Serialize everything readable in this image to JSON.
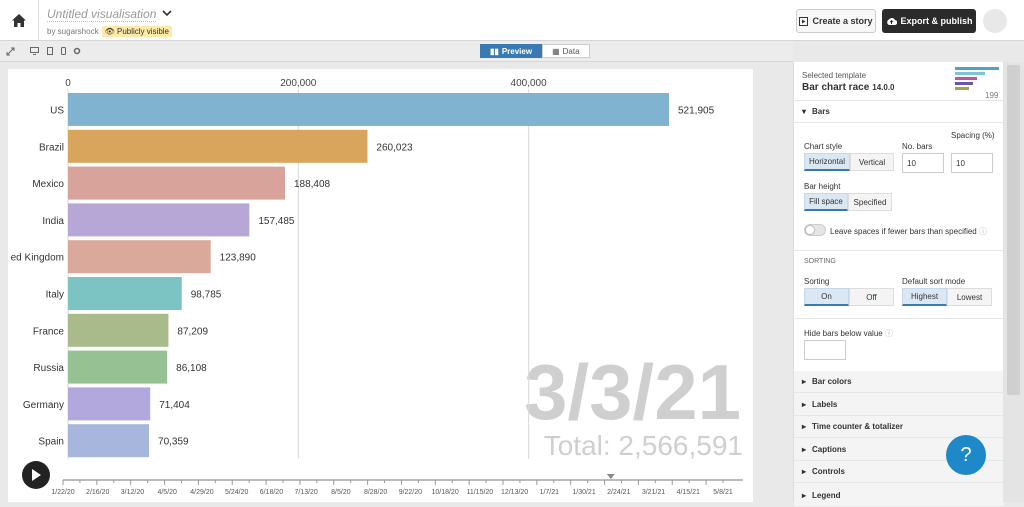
{
  "header": {
    "title": "Untitled visualisation",
    "author": "by sugarshock",
    "visibility": "Publicly visible",
    "create_story": "Create a story",
    "export": "Export & publish"
  },
  "view_toggle": {
    "preview": "Preview",
    "data": "Data"
  },
  "chart_data": {
    "type": "bar",
    "orientation": "horizontal",
    "categories": [
      "US",
      "Brazil",
      "Mexico",
      "India",
      "United Kingdom",
      "Italy",
      "France",
      "Russia",
      "Germany",
      "Spain"
    ],
    "values": [
      521905,
      260023,
      188408,
      157485,
      123890,
      98785,
      87209,
      86108,
      71404,
      70359
    ],
    "value_labels": [
      "521,905",
      "260,023",
      "188,408",
      "157,485",
      "123,890",
      "98,785",
      "87,209",
      "86,108",
      "71,404",
      "70,359"
    ],
    "category_labels": [
      "US",
      "Brazil",
      "Mexico",
      "India",
      "ed Kingdom",
      "Italy",
      "France",
      "Russia",
      "Germany",
      "Spain"
    ],
    "colors": [
      "#7fb3d0",
      "#d9a55c",
      "#d8a39b",
      "#b6a7d6",
      "#dba89c",
      "#7cc4c4",
      "#a9bb8a",
      "#96c293",
      "#b2a8de",
      "#a6b6dc"
    ],
    "xlim": [
      0,
      600000
    ],
    "x_ticks": [
      0,
      200000,
      400000
    ],
    "x_tick_labels": [
      "0",
      "200,000",
      "400,000"
    ],
    "date": "3/3/21",
    "total": "Total: 2,566,591",
    "timeline_labels": [
      "1/22/20",
      "2/16/20",
      "3/12/20",
      "4/5/20",
      "4/29/20",
      "5/24/20",
      "6/18/20",
      "7/13/20",
      "8/5/20",
      "8/28/20",
      "9/22/20",
      "10/18/20",
      "11/15/20",
      "12/13/20",
      "1/7/21",
      "1/30/21",
      "2/24/21",
      "3/21/21",
      "4/15/21",
      "5/8/21"
    ],
    "timeline_progress": 0.83
  },
  "panel": {
    "selected_label": "Selected template",
    "template_name": "Bar chart race",
    "template_version": "14.0.0",
    "thumb_label": "199",
    "bars_section": "Bars",
    "chart_style_label": "Chart style",
    "chart_style_options": [
      "Horizontal",
      "Vertical"
    ],
    "no_bars_label": "No. bars",
    "no_bars_value": "10",
    "spacing_label": "Spacing (%)",
    "spacing_value": "10",
    "bar_height_label": "Bar height",
    "bar_height_options": [
      "Fill space",
      "Specified"
    ],
    "leave_spaces_label": "Leave spaces if fewer bars than specified",
    "sorting_section": "SORTING",
    "sorting_label": "Sorting",
    "sorting_options": [
      "On",
      "Off"
    ],
    "sort_mode_label": "Default sort mode",
    "sort_mode_options": [
      "Highest",
      "Lowest"
    ],
    "hide_bars_label": "Hide bars below value",
    "sections": [
      "Bar colors",
      "Labels",
      "Time counter & totalizer",
      "Captions",
      "Controls",
      "Legend"
    ]
  }
}
